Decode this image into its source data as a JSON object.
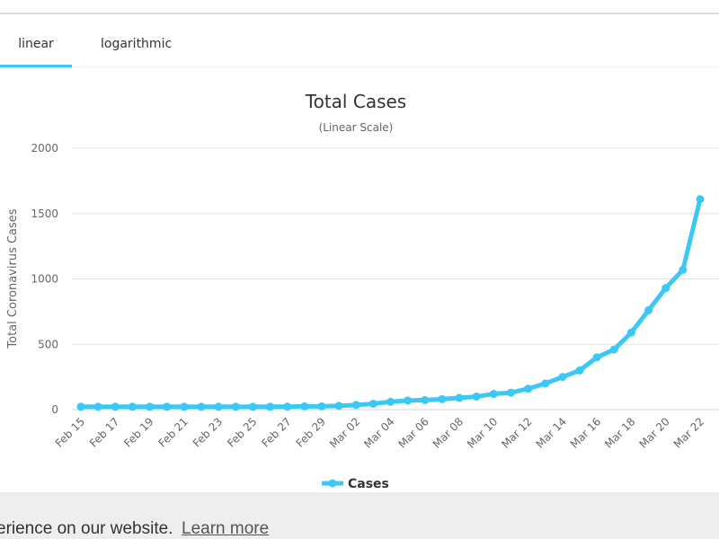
{
  "tabs": [
    "linear",
    "logarithmic"
  ],
  "banner": {
    "text": "erience on our website.",
    "link": "Learn more"
  },
  "chart_data": {
    "type": "line",
    "title": "Total Cases",
    "subtitle": "(Linear Scale)",
    "y_label": "Total Coronavirus Cases",
    "categories": [
      "Feb 15",
      null,
      "Feb 17",
      null,
      "Feb 19",
      null,
      "Feb 21",
      null,
      "Feb 23",
      null,
      "Feb 25",
      null,
      "Feb 27",
      null,
      "Feb 29",
      null,
      "Mar 02",
      null,
      "Mar 04",
      null,
      "Mar 06",
      null,
      "Mar 08",
      null,
      "Mar 10",
      null,
      "Mar 12",
      null,
      "Mar 14",
      null,
      "Mar 16",
      null,
      "Mar 18",
      null,
      "Mar 20",
      null,
      "Mar 22"
    ],
    "series": [
      {
        "name": "Cases",
        "color": "#3cc8f5",
        "values": [
          22,
          22,
          22,
          22,
          22,
          22,
          22,
          22,
          22,
          22,
          22,
          22,
          23,
          25,
          25,
          29,
          36,
          45,
          60,
          70,
          73,
          80,
          90,
          100,
          120,
          130,
          160,
          200,
          250,
          300,
          400,
          460,
          590,
          760,
          930,
          1070,
          1610
        ]
      }
    ],
    "ylim": [
      0,
      2000
    ],
    "yticks": [
      0,
      500,
      1000,
      1500,
      2000
    ],
    "grid": true
  }
}
